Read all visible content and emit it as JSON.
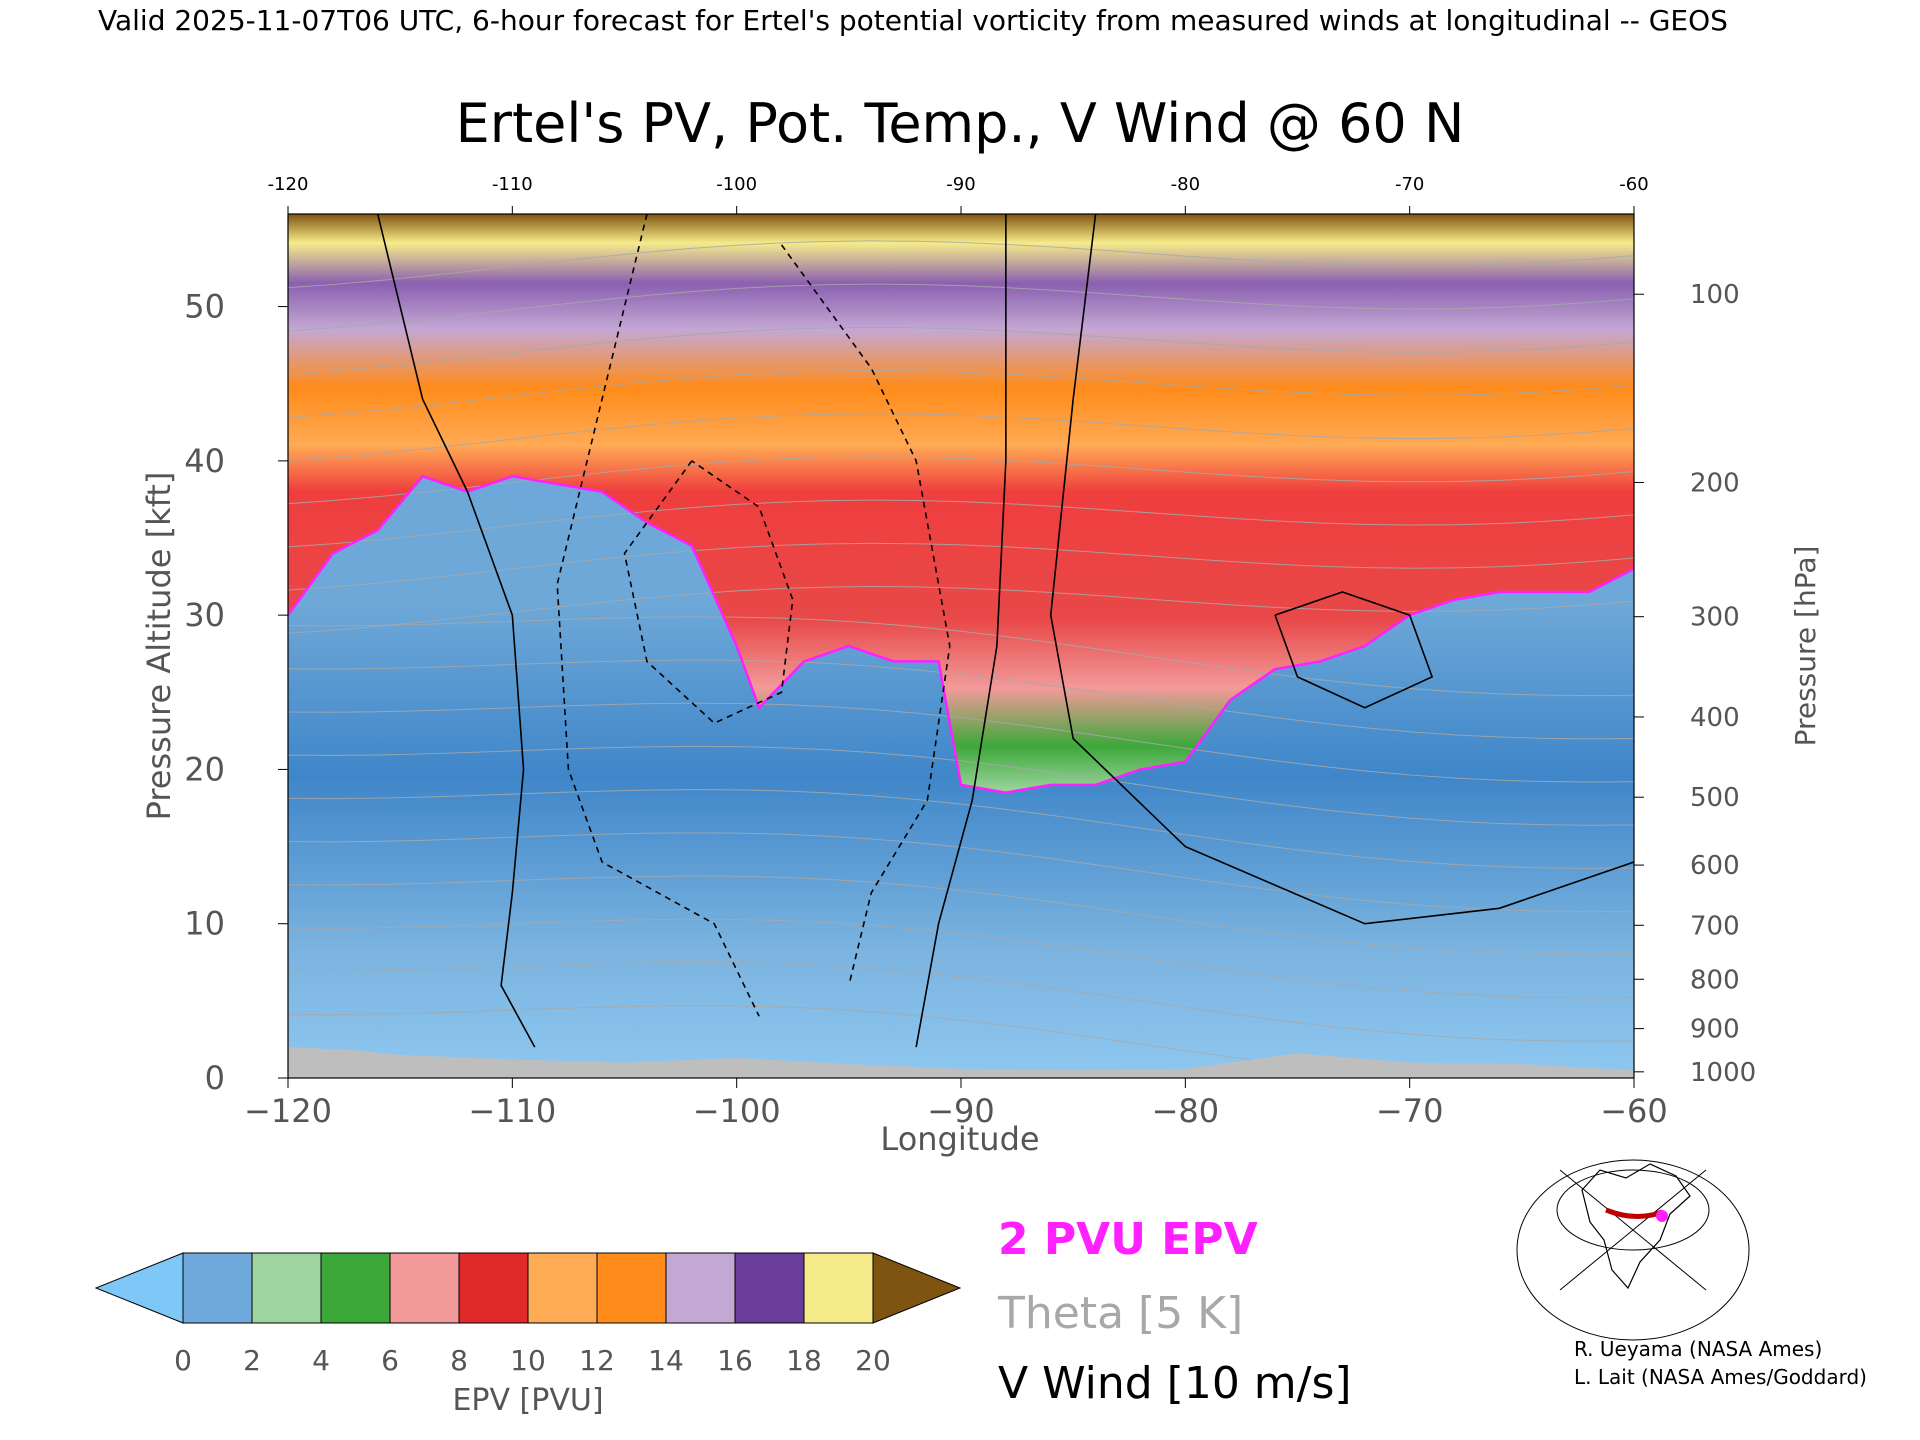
{
  "header": "Valid 2025-11-07T06 UTC, 6-hour forecast for Ertel's potential vorticity from measured winds at longitudinal -- GEOS",
  "chart_data": {
    "type": "heatmap",
    "title": "Ertel's PV, Pot. Temp., V Wind @ 60 N",
    "xlabel": "Longitude",
    "ylabel": "Pressure Altitude [kft]",
    "y2label": "Pressure [hPa]",
    "xlim": [
      -120,
      -60
    ],
    "ylim": [
      0,
      56
    ],
    "x_ticks": [
      -120,
      -110,
      -100,
      -90,
      -80,
      -70,
      -60
    ],
    "y_ticks": [
      0,
      10,
      20,
      30,
      40,
      50
    ],
    "pressure_ticks": [
      {
        "hpa": 100,
        "kft": 50.8
      },
      {
        "hpa": 200,
        "kft": 38.6
      },
      {
        "hpa": 300,
        "kft": 29.9
      },
      {
        "hpa": 400,
        "kft": 23.4
      },
      {
        "hpa": 500,
        "kft": 18.2
      },
      {
        "hpa": 600,
        "kft": 13.8
      },
      {
        "hpa": 700,
        "kft": 9.9
      },
      {
        "hpa": 800,
        "kft": 6.4
      },
      {
        "hpa": 900,
        "kft": 3.2
      },
      {
        "hpa": 1000,
        "kft": 0.4
      }
    ],
    "two_pvu_boundary_kft": [
      [
        -120,
        30
      ],
      [
        -118,
        34
      ],
      [
        -116,
        35.5
      ],
      [
        -114,
        39
      ],
      [
        -112,
        38
      ],
      [
        -110,
        39
      ],
      [
        -108,
        38.5
      ],
      [
        -106,
        38
      ],
      [
        -104,
        36
      ],
      [
        -102,
        34.5
      ],
      [
        -100,
        28
      ],
      [
        -99,
        24
      ],
      [
        -97,
        27
      ],
      [
        -95,
        28
      ],
      [
        -93,
        27
      ],
      [
        -91,
        27
      ],
      [
        -90,
        19
      ],
      [
        -88,
        18.5
      ],
      [
        -86,
        19
      ],
      [
        -84,
        19
      ],
      [
        -82,
        20
      ],
      [
        -80,
        20.5
      ],
      [
        -78,
        24.5
      ],
      [
        -76,
        26.5
      ],
      [
        -74,
        27
      ],
      [
        -72,
        28
      ],
      [
        -70,
        30
      ],
      [
        -68,
        31
      ],
      [
        -66,
        31.5
      ],
      [
        -64,
        31.5
      ],
      [
        -62,
        31.5
      ],
      [
        -60,
        33
      ]
    ],
    "surface_terrain_kft": [
      [
        -120,
        2
      ],
      [
        -117,
        1.8
      ],
      [
        -115,
        1.5
      ],
      [
        -110,
        1.2
      ],
      [
        -105,
        1.0
      ],
      [
        -100,
        1.3
      ],
      [
        -95,
        0.9
      ],
      [
        -90,
        0.6
      ],
      [
        -85,
        0.5
      ],
      [
        -80,
        0.6
      ],
      [
        -75,
        1.6
      ],
      [
        -70,
        1.0
      ],
      [
        -65,
        0.9
      ],
      [
        -60,
        0.5
      ]
    ],
    "wind_contour_levels_ms": [
      -30,
      -10,
      0,
      10,
      30
    ],
    "colorbar": {
      "label": "EPV [PVU]",
      "ticks": [
        0,
        2,
        4,
        6,
        8,
        10,
        12,
        14,
        16,
        18,
        20
      ],
      "colors": [
        "#6fa9dc",
        "#9ed5a0",
        "#3da83a",
        "#f29a9a",
        "#e02a2a",
        "#ffaa55",
        "#ff8b1a",
        "#c4a8d4",
        "#6a3d9a",
        "#f6eb8a"
      ],
      "under_color": "#7ec8f7",
      "over_color": "#7f5410"
    },
    "legend": {
      "epv": "2 PVU EPV",
      "theta": "Theta [5 K]",
      "wind": "V Wind [10 m/s]"
    }
  },
  "credits": [
    "R. Ueyama (NASA Ames)",
    "L. Lait (NASA Ames/Goddard)"
  ],
  "colors": {
    "pvu_line": "#ff20ff",
    "theta_line": "#a8a8a8",
    "terrain": "#bebebe"
  }
}
